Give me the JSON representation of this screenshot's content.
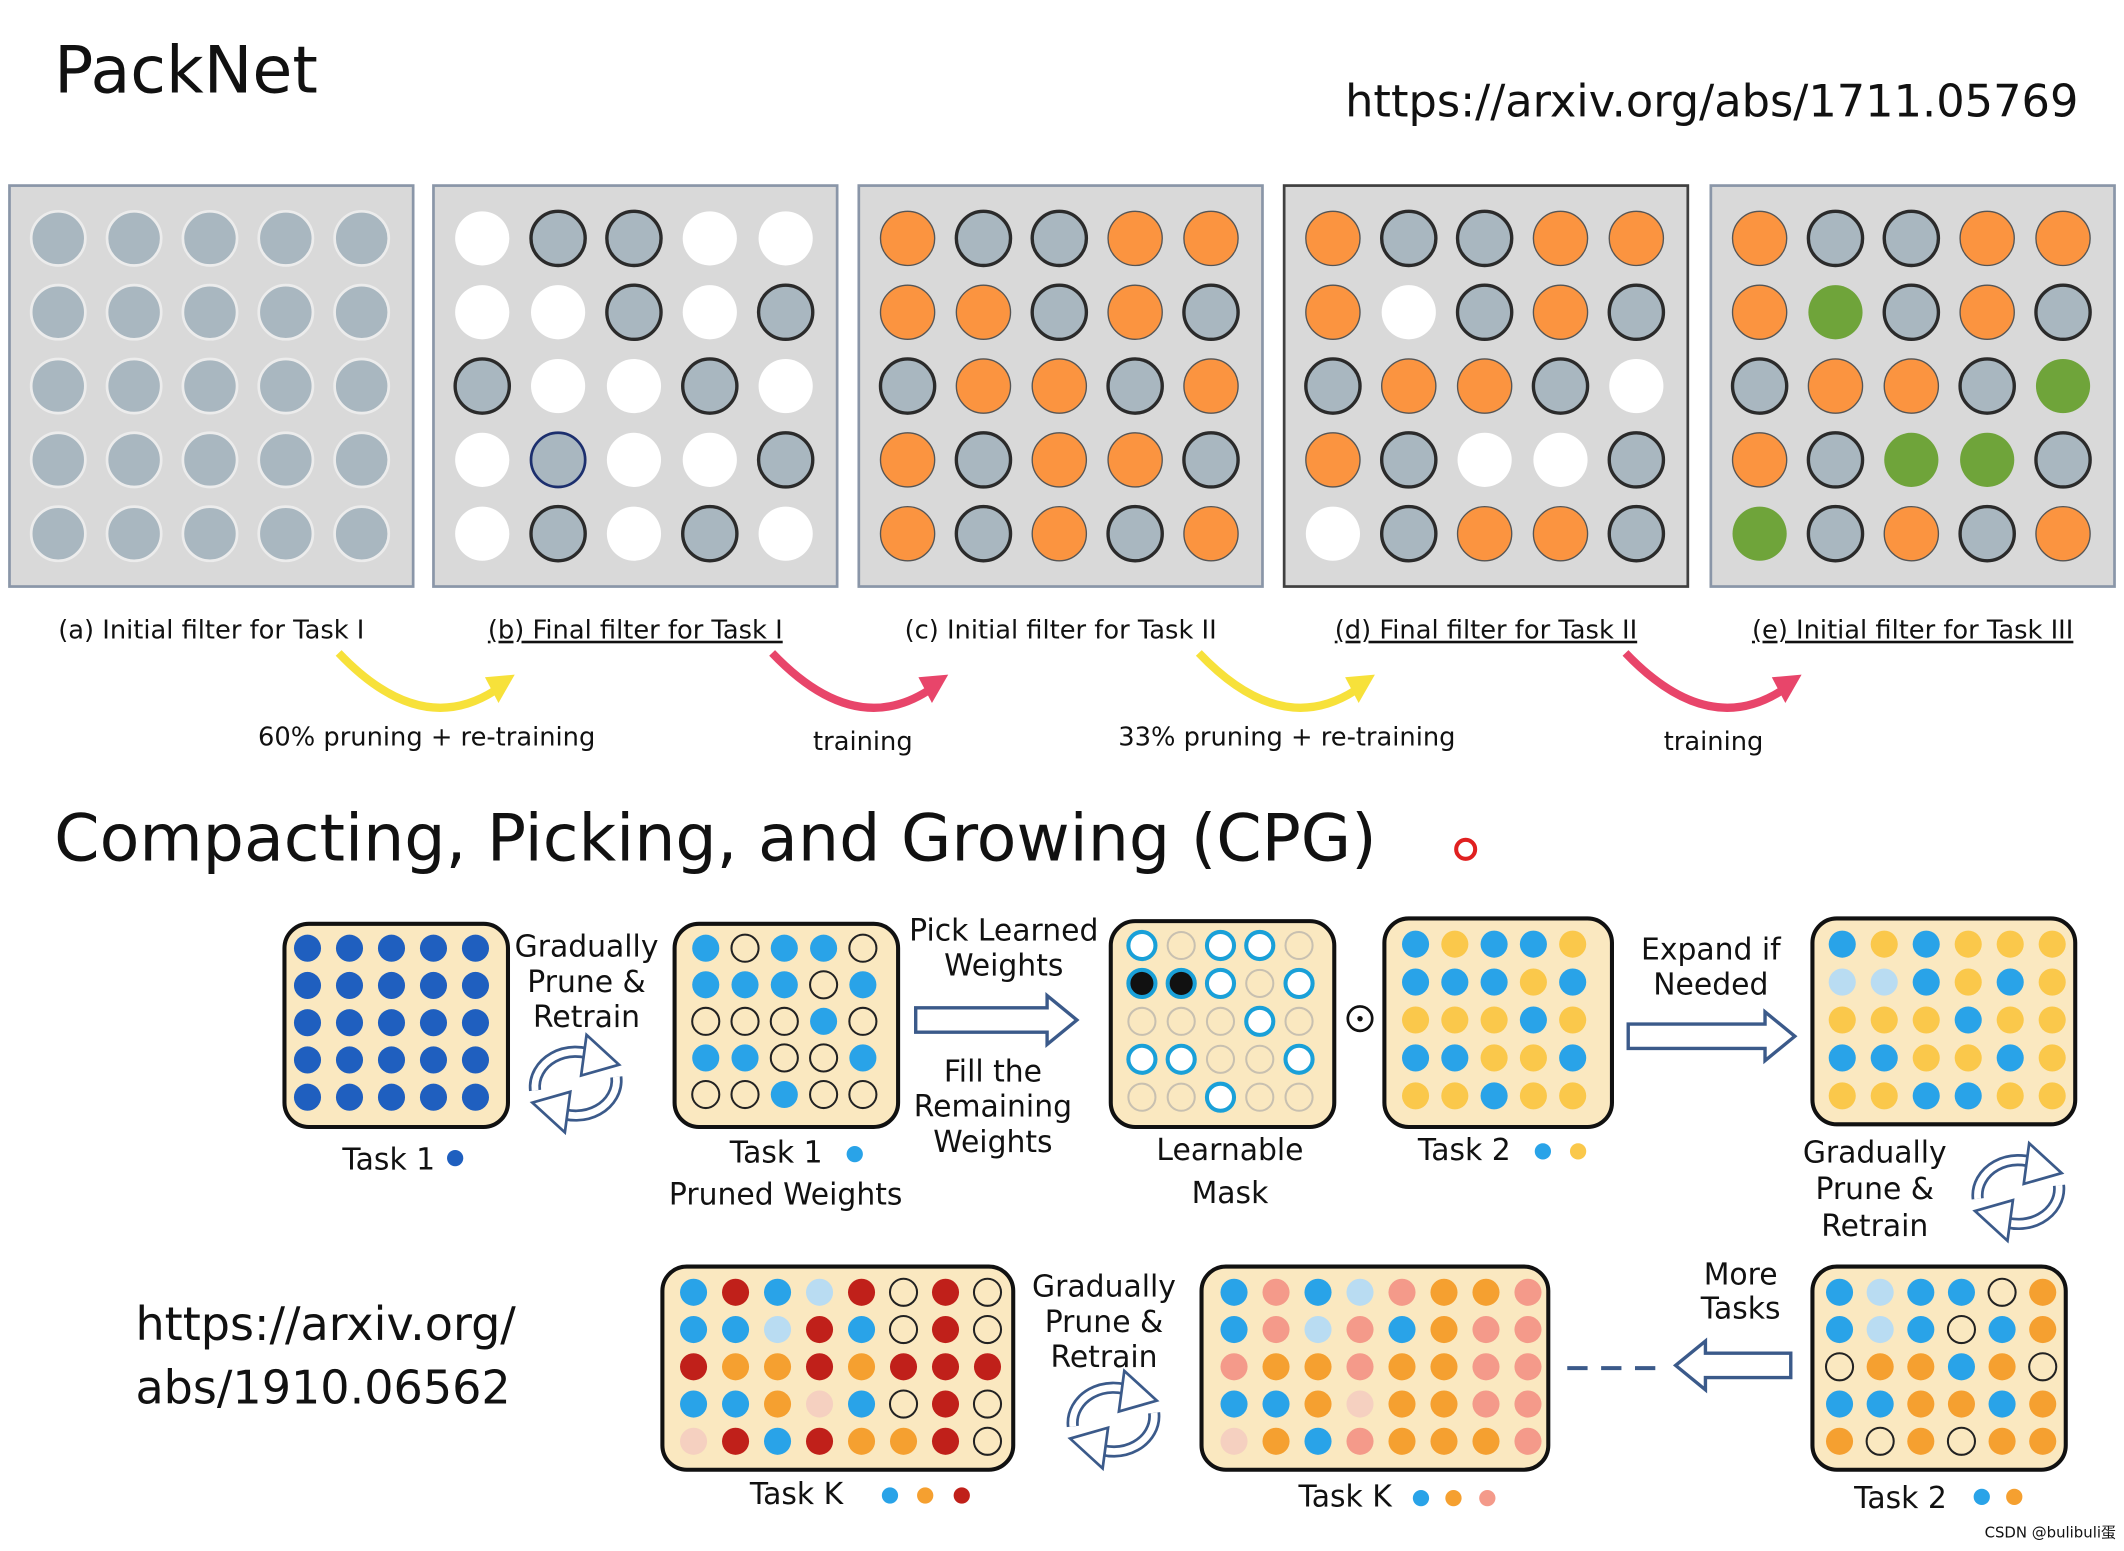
{
  "packnet": {
    "title": "PackNet",
    "url": "https://arxiv.org/abs/1711.05769",
    "panels": [
      {
        "caption": "(a) Initial filter for Task I"
      },
      {
        "caption": "(b) Final filter for Task I"
      },
      {
        "caption": "(c) Initial filter for Task II"
      },
      {
        "caption": "(d) Final filter for Task II"
      },
      {
        "caption": "(e) Initial filter for Task III"
      }
    ],
    "transitions": [
      "60% pruning + re-training",
      "training",
      "33% pruning + re-training",
      "training"
    ]
  },
  "cpg": {
    "title": "Compacting, Picking, and Growing (CPG)",
    "url_lines": [
      "https://arxiv.org/",
      "abs/1910.06562"
    ],
    "labels": [
      {
        "lines": [
          "Gradually",
          "Prune &",
          "Retrain"
        ]
      },
      {
        "lines": [
          "Pick Learned",
          "Weights"
        ]
      },
      {
        "lines": [
          "Fill the",
          "Remaining",
          "Weights"
        ]
      },
      {
        "lines": [
          "Task 1"
        ]
      },
      {
        "lines": [
          "Task 1"
        ]
      },
      {
        "lines": [
          "Pruned Weights"
        ]
      },
      {
        "lines": [
          "Learnable",
          "Mask"
        ]
      },
      {
        "lines": [
          "Task 2"
        ]
      },
      {
        "lines": [
          "Expand if",
          "Needed"
        ]
      },
      {
        "lines": [
          "Gradually",
          "Prune &",
          "Retrain"
        ]
      },
      {
        "lines": [
          "More",
          "Tasks"
        ]
      },
      {
        "lines": [
          "Gradually",
          "Prune &",
          "Retrain"
        ]
      },
      {
        "lines": [
          "Task K"
        ]
      },
      {
        "lines": [
          "Task K"
        ]
      },
      {
        "lines": [
          "Task 2"
        ]
      }
    ]
  },
  "watermark": "CSDN @bulibuli蛋"
}
